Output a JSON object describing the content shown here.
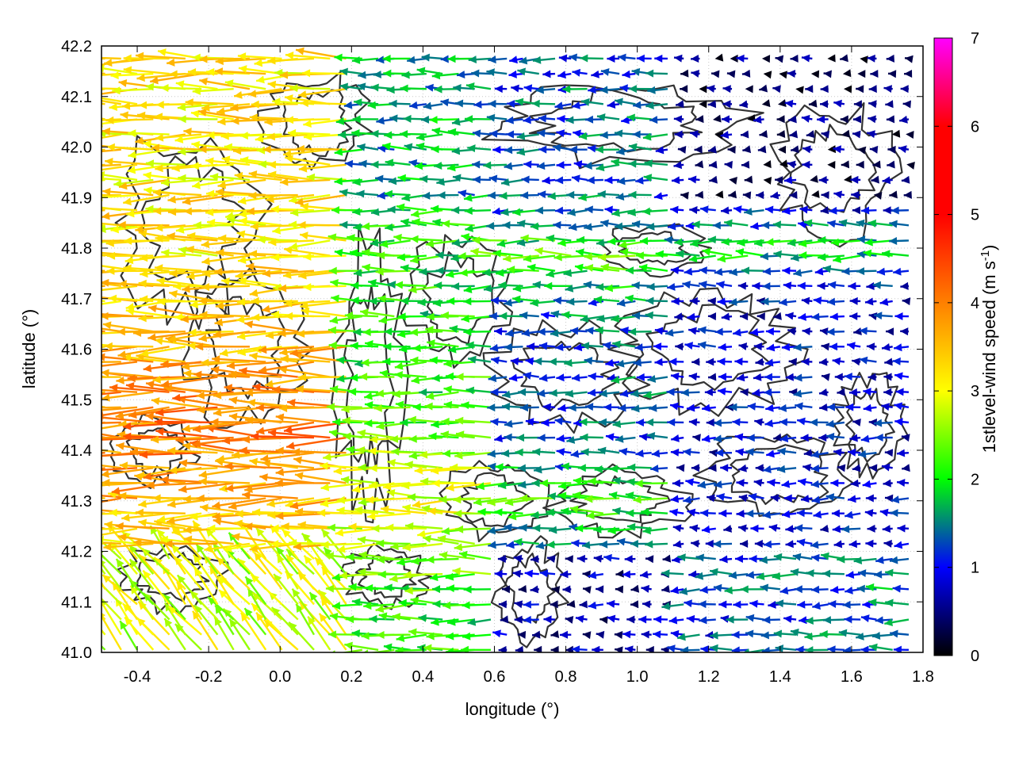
{
  "chart_data": {
    "type": "vector-field",
    "title": "",
    "xlabel": "longitude (°)",
    "ylabel": "latitude (°)",
    "xlim": [
      -0.5,
      1.8
    ],
    "ylim": [
      41.0,
      42.2
    ],
    "xticks": [
      -0.4,
      -0.2,
      0.0,
      0.2,
      0.4,
      0.6,
      0.8,
      1.0,
      1.2,
      1.4,
      1.6,
      1.8
    ],
    "xtick_labels": [
      "-0.4",
      "-0.2",
      "0.0",
      "0.2",
      "0.4",
      "0.6",
      "0.8",
      "1.0",
      "1.2",
      "1.4",
      "1.6",
      "1.8"
    ],
    "yticks": [
      41.0,
      41.1,
      41.2,
      41.3,
      41.4,
      41.5,
      41.6,
      41.7,
      41.8,
      41.9,
      42.0,
      42.1,
      42.2
    ],
    "ytick_labels": [
      "41.0",
      "41.1",
      "41.2",
      "41.3",
      "41.4",
      "41.5",
      "41.6",
      "41.7",
      "41.8",
      "41.9",
      "42.0",
      "42.1",
      "42.2"
    ],
    "grid": true,
    "colorbar": {
      "label_main": "1stlevel-wind speed (m s",
      "label_sup": "-1",
      "label_end": ")",
      "range": [
        0,
        7
      ],
      "ticks": [
        "0",
        "1",
        "2",
        "3",
        "4",
        "5",
        "6",
        "7"
      ],
      "colors": [
        "#000000",
        "#0000ff",
        "#00ff00",
        "#ffff00",
        "#ff8000",
        "#ff0000",
        "#ff00ff"
      ]
    },
    "contour_color": "#333333",
    "wind_regions": [
      {
        "lon": [
          -0.5,
          0.2
        ],
        "lat": [
          41.45,
          41.75
        ],
        "speed": 4.5,
        "dir": "westward"
      },
      {
        "lon": [
          -0.5,
          0.2
        ],
        "lat": [
          41.75,
          42.2
        ],
        "speed": 3.2,
        "dir": "westward"
      },
      {
        "lon": [
          -0.5,
          0.3
        ],
        "lat": [
          41.2,
          41.45
        ],
        "speed": 3.8,
        "dir": "westward"
      },
      {
        "lon": [
          -0.5,
          0.1
        ],
        "lat": [
          41.0,
          41.2
        ],
        "speed": 3.0,
        "dir": "north-westward"
      },
      {
        "lon": [
          0.2,
          1.0
        ],
        "lat": [
          41.7,
          41.9
        ],
        "speed": 2.0,
        "dir": "westward"
      },
      {
        "lon": [
          0.6,
          1.4
        ],
        "lat": [
          41.0,
          41.2
        ],
        "speed": 0.5,
        "dir": "variable"
      },
      {
        "lon": [
          1.5,
          1.8
        ],
        "lat": [
          41.0,
          41.2
        ],
        "speed": 1.2,
        "dir": "westward"
      },
      {
        "lon": [
          1.0,
          1.8
        ],
        "lat": [
          41.8,
          42.2
        ],
        "speed": 0.6,
        "dir": "variable"
      }
    ]
  }
}
